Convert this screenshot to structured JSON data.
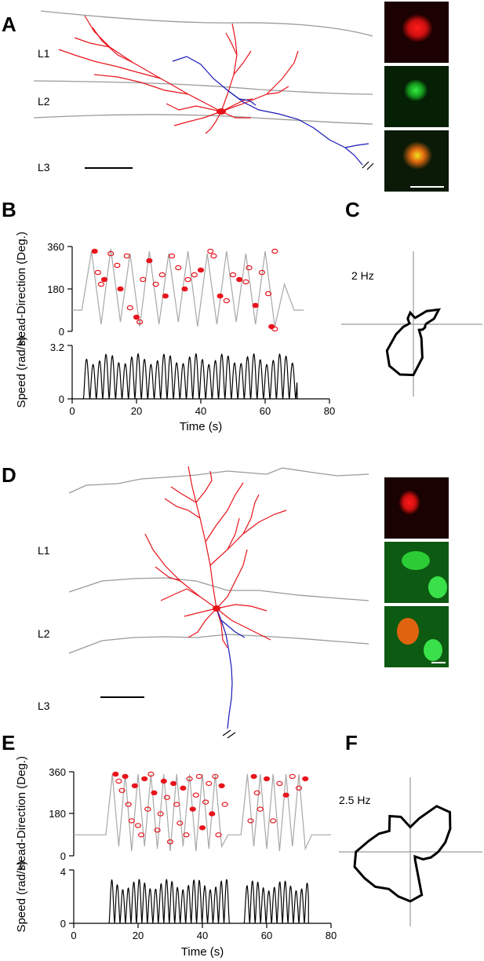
{
  "panels": {
    "A": {
      "label": "A",
      "layers": [
        "L1",
        "L2",
        "L3"
      ]
    },
    "B": {
      "label": "B"
    },
    "C": {
      "label": "C",
      "rate": "2 Hz"
    },
    "D": {
      "label": "D",
      "layers": [
        "L1",
        "L2",
        "L3"
      ]
    },
    "E": {
      "label": "E"
    },
    "F": {
      "label": "F",
      "rate": "2.5 Hz"
    }
  },
  "colors": {
    "dendrite": "#e8141c",
    "axon": "#1a1ab8",
    "trace": "#a8a8a8",
    "layer_line": "#9a9a9a",
    "spike": "#e8141c"
  },
  "chart_data": [
    {
      "type": "line",
      "panel": "B",
      "ylabel": "Head-Direction (Deg.)",
      "yticks": [
        "0",
        "180",
        "360"
      ],
      "ylim": [
        0,
        360
      ],
      "xlim": [
        0,
        80
      ],
      "head_direction": {
        "x": [
          0,
          3,
          6,
          9,
          12,
          15,
          18,
          21,
          24,
          27,
          30,
          33,
          36,
          39,
          42,
          45,
          48,
          51,
          54,
          57,
          60,
          63,
          66,
          69,
          72
        ],
        "y": [
          90,
          90,
          340,
          30,
          350,
          40,
          330,
          20,
          340,
          30,
          330,
          40,
          340,
          20,
          330,
          30,
          340,
          40,
          330,
          30,
          340,
          20,
          200,
          90,
          90
        ]
      },
      "spikes": {
        "x": [
          7,
          8,
          9,
          10,
          12,
          14,
          15,
          17,
          18,
          20,
          21,
          22,
          24,
          26,
          28,
          29,
          31,
          33,
          35,
          36,
          38,
          40,
          43,
          44,
          46,
          48,
          50,
          52,
          54,
          55,
          57,
          59,
          61,
          62,
          63,
          63
        ],
        "y": [
          340,
          250,
          200,
          220,
          330,
          280,
          180,
          320,
          100,
          60,
          40,
          220,
          300,
          200,
          240,
          150,
          320,
          270,
          180,
          220,
          240,
          260,
          340,
          320,
          150,
          130,
          240,
          220,
          210,
          270,
          110,
          250,
          160,
          20,
          10,
          340
        ]
      }
    },
    {
      "type": "line",
      "panel": "B",
      "ylabel": "Speed (rad/s)",
      "xlabel": "Time (s)",
      "yticks": [
        "0",
        "3.2"
      ],
      "xticks": [
        "0",
        "20",
        "40",
        "60",
        "80"
      ],
      "ylim": [
        0,
        3.2
      ],
      "xlim": [
        0,
        80
      ],
      "oscillation": {
        "start": 3.5,
        "end": 70,
        "period": 2.0,
        "peak": 2.7
      }
    },
    {
      "type": "line",
      "panel": "E",
      "ylabel": "Head-Direction (Deg.)",
      "yticks": [
        "0",
        "180",
        "360"
      ],
      "ylim": [
        0,
        360
      ],
      "xlim": [
        0,
        80
      ],
      "head_direction": {
        "x": [
          0,
          10,
          12,
          14,
          16,
          18,
          20,
          22,
          24,
          26,
          28,
          30,
          32,
          34,
          36,
          38,
          40,
          42,
          44,
          46,
          48,
          52,
          54,
          56,
          58,
          60,
          62,
          64,
          66,
          68,
          70,
          72,
          74,
          80
        ],
        "y": [
          90,
          90,
          350,
          40,
          350,
          20,
          350,
          40,
          350,
          30,
          350,
          20,
          350,
          40,
          350,
          20,
          350,
          30,
          350,
          40,
          90,
          90,
          350,
          40,
          350,
          30,
          350,
          20,
          350,
          40,
          350,
          30,
          90,
          90
        ]
      },
      "spikes": {
        "x": [
          13,
          14,
          15,
          16,
          17,
          18,
          19,
          20,
          21,
          22,
          23,
          24,
          25,
          26,
          27,
          28,
          29,
          30,
          31,
          32,
          33,
          34,
          35,
          36,
          37,
          38,
          39,
          40,
          41,
          42,
          43,
          44,
          45,
          46,
          47,
          55,
          56,
          57,
          58,
          60,
          62,
          64,
          66,
          68,
          70,
          72
        ],
        "y": [
          350,
          320,
          280,
          340,
          220,
          150,
          300,
          130,
          90,
          330,
          200,
          350,
          270,
          110,
          180,
          320,
          250,
          60,
          310,
          220,
          140,
          290,
          90,
          330,
          200,
          260,
          340,
          120,
          230,
          310,
          180,
          340,
          90,
          300,
          220,
          150,
          340,
          270,
          200,
          330,
          150,
          310,
          260,
          340,
          290,
          330
        ]
      }
    },
    {
      "type": "line",
      "panel": "E",
      "ylabel": "Speed (rad/s)",
      "xlabel": "Time (s)",
      "yticks": [
        "0",
        "4"
      ],
      "xticks": [
        "0",
        "20",
        "40",
        "60",
        "80"
      ],
      "ylim": [
        0,
        4
      ],
      "xlim": [
        0,
        80
      ],
      "segments": [
        {
          "start": 11,
          "end": 48.5,
          "period": 1.7,
          "peak": 3.3
        },
        {
          "start": 53,
          "end": 73,
          "period": 1.7,
          "peak": 3.2
        }
      ]
    },
    {
      "type": "polar",
      "panel": "C",
      "rate": "2 Hz",
      "radius": [
        0.9,
        1.6,
        2.2,
        1.4,
        0.7,
        0.5,
        0.6,
        0.9,
        0.7,
        0.6,
        0.4,
        0.3,
        0.4,
        0.8,
        1.5,
        2.8,
        3.6,
        3.9,
        3.8,
        2.6,
        1.2,
        0.6,
        0.8,
        0.9
      ]
    },
    {
      "type": "polar",
      "panel": "F",
      "rate": "2.5 Hz",
      "radius": [
        1.7,
        2.2,
        2.8,
        3.4,
        3.2,
        2.1,
        1.5,
        2.2,
        2.5,
        1.8,
        2.2,
        2.6,
        3.3,
        3.5,
        3.2,
        3.0,
        2.6,
        2.8,
        3.0,
        2.7,
        0.6,
        0.4,
        0.9,
        1.3
      ]
    }
  ]
}
